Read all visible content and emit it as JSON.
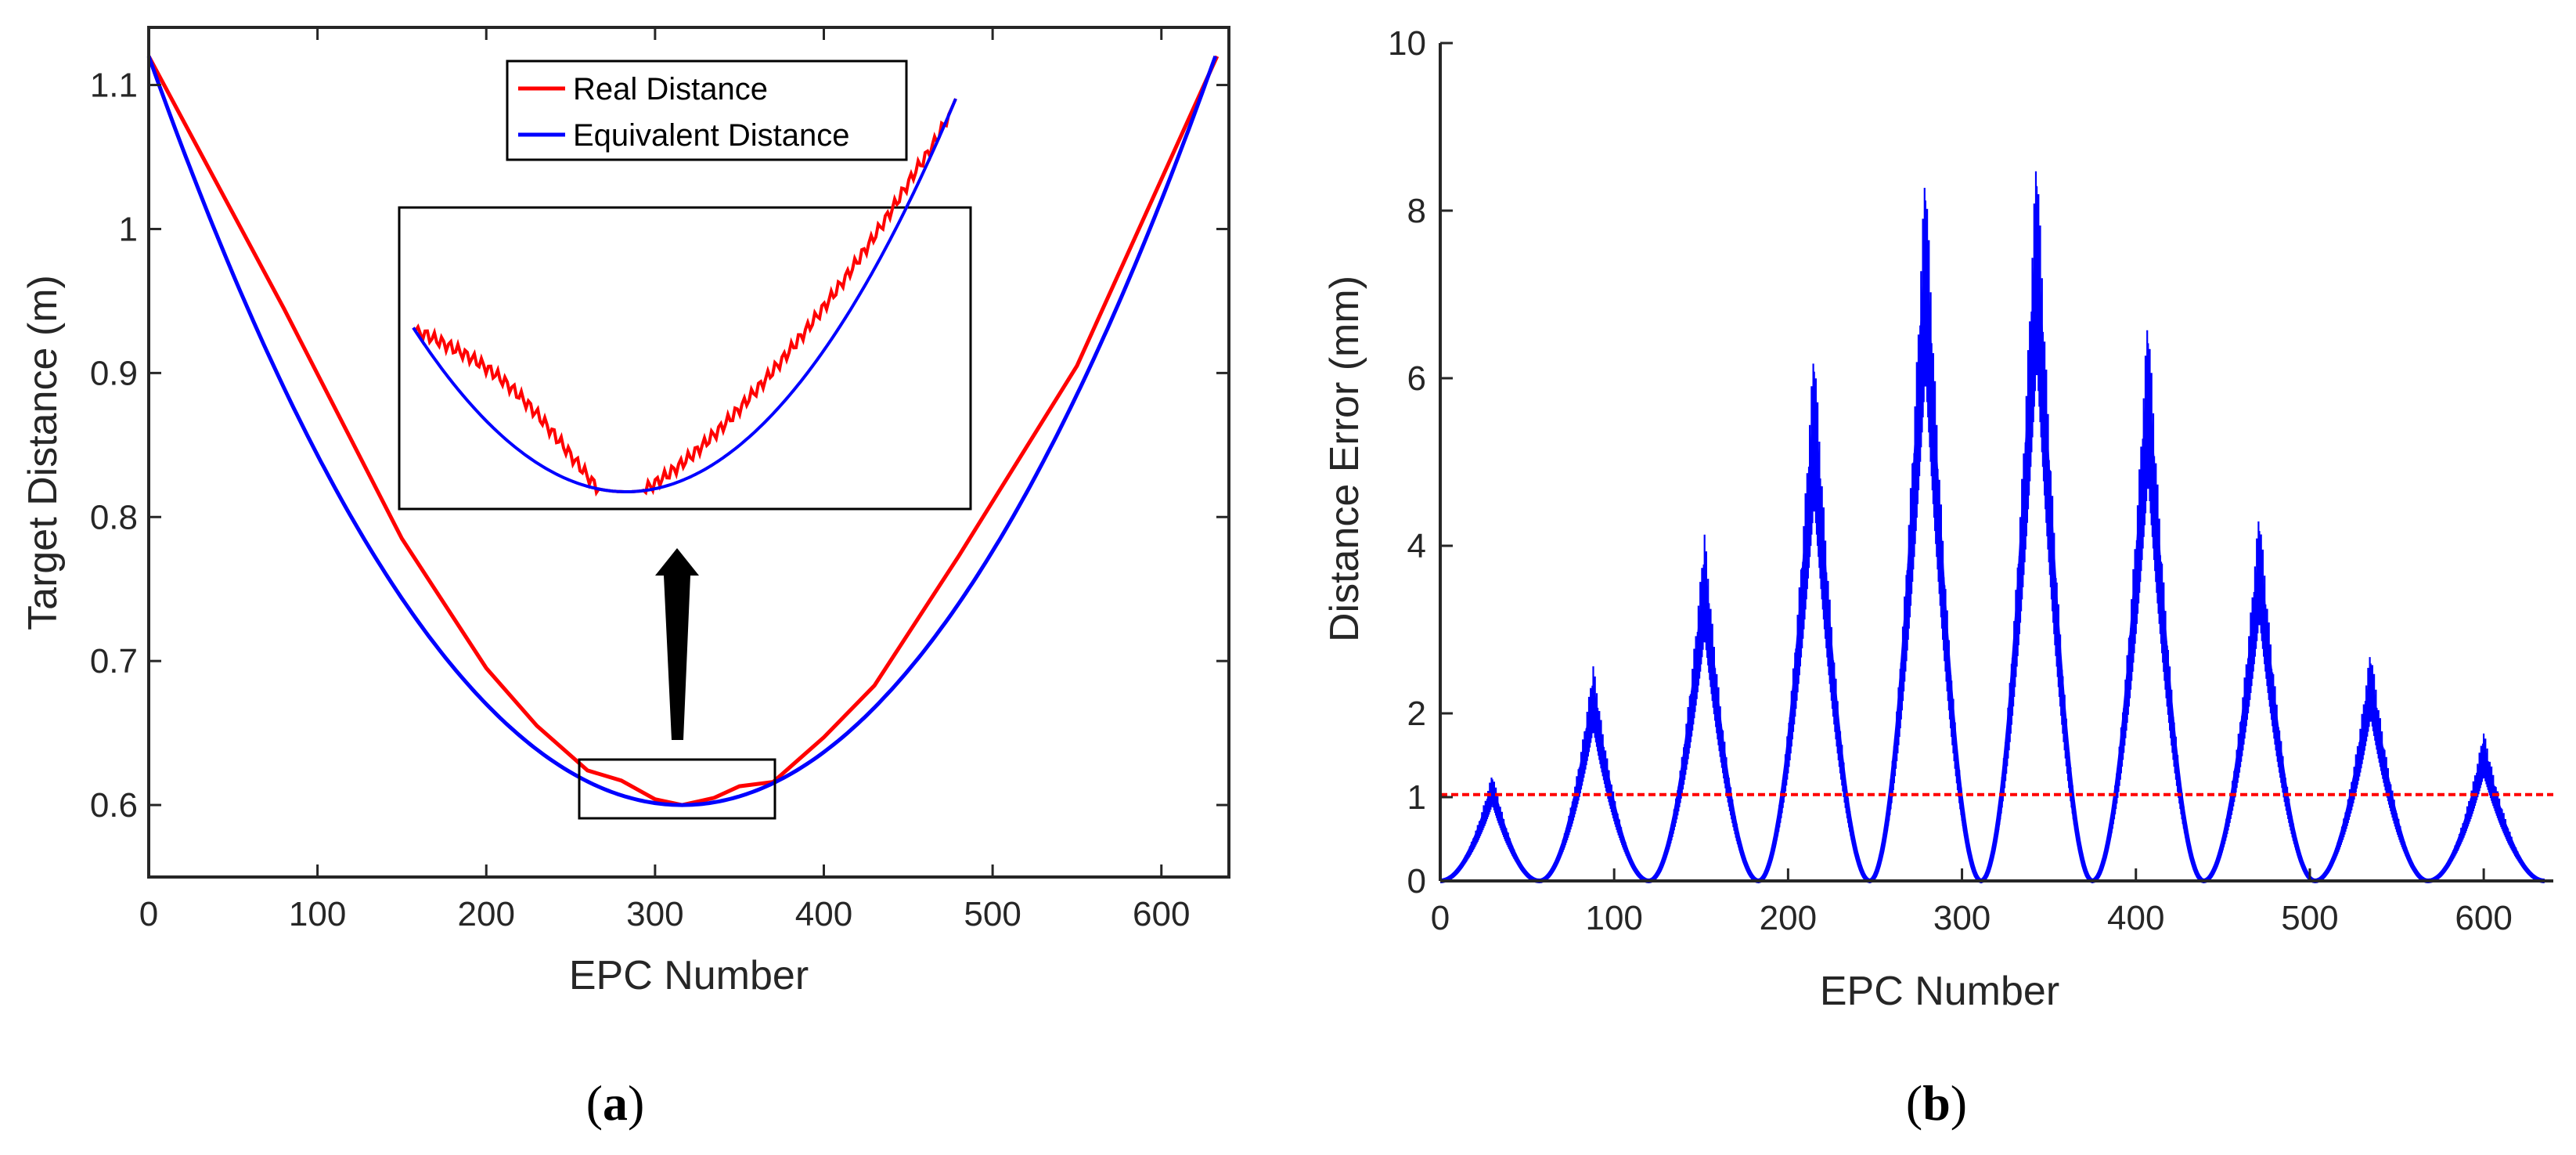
{
  "colors": {
    "real": "#ff0000",
    "equivalent": "#0000ff",
    "error": "#0000ff",
    "threshold": "#ff0000",
    "arrow": "#000000",
    "axis": "#262626"
  },
  "panel_a": {
    "caption_open": "(",
    "caption_letter": "a",
    "caption_close": ")",
    "legend": {
      "real": "Real Distance",
      "equivalent": "Equivalent Distance"
    }
  },
  "panel_b": {
    "caption_open": "(",
    "caption_letter": "b",
    "caption_close": ")"
  },
  "chart_data": [
    {
      "type": "line",
      "panel": "a",
      "title": "",
      "xlabel": "EPC Number",
      "ylabel": "Target Distance (m)",
      "xlim": [
        0,
        640
      ],
      "ylim": [
        0.55,
        1.14
      ],
      "xticks": [
        0,
        100,
        200,
        300,
        400,
        500,
        600
      ],
      "yticks": [
        0.6,
        0.7,
        0.8,
        0.9,
        1,
        1.1
      ],
      "ytick_labels": [
        "0.6",
        "0.7",
        "0.8",
        "0.9",
        "1",
        "1.1"
      ],
      "grid": false,
      "legend_position": "top-center",
      "series": [
        {
          "name": "Real Distance",
          "x": [
            0,
            80,
            150,
            200,
            230,
            260,
            280,
            300,
            316,
            335,
            350,
            370,
            400,
            430,
            480,
            550,
            633
          ],
          "y": [
            1.12,
            0.945,
            0.785,
            0.695,
            0.655,
            0.624,
            0.617,
            0.604,
            0.6,
            0.605,
            0.613,
            0.616,
            0.647,
            0.683,
            0.773,
            0.905,
            1.12
          ]
        },
        {
          "name": "Equivalent Distance",
          "vertex_x": 316,
          "min": 0.6,
          "max": 1.12,
          "x_end": 633
        }
      ],
      "inset": {
        "description": "zoom of minimum region",
        "source_x_range": [
          255,
          372
        ],
        "source_y_range": [
          0.592,
          0.635
        ]
      }
    },
    {
      "type": "line",
      "panel": "b",
      "title": "",
      "xlabel": "EPC Number",
      "ylabel": "Distance Error (mm)",
      "xlim": [
        0,
        640
      ],
      "ylim": [
        0,
        10
      ],
      "xticks": [
        0,
        100,
        200,
        300,
        400,
        500,
        600
      ],
      "yticks": [
        0,
        1,
        2,
        4,
        6,
        8,
        10
      ],
      "grid": false,
      "series": [
        {
          "name": "Distance Error",
          "peak_x": [
            30,
            88,
            152,
            215,
            279,
            343,
            407,
            471,
            535,
            600
          ],
          "peak_y": [
            1.3,
            2.6,
            4.2,
            6.5,
            8.7,
            8.9,
            6.9,
            4.5,
            2.8,
            1.8
          ],
          "zero_x": [
            0,
            57,
            120,
            183,
            247,
            311,
            375,
            439,
            503,
            568,
            635
          ]
        },
        {
          "name": "Threshold",
          "y": 1.03,
          "style": "dashed"
        }
      ]
    }
  ]
}
